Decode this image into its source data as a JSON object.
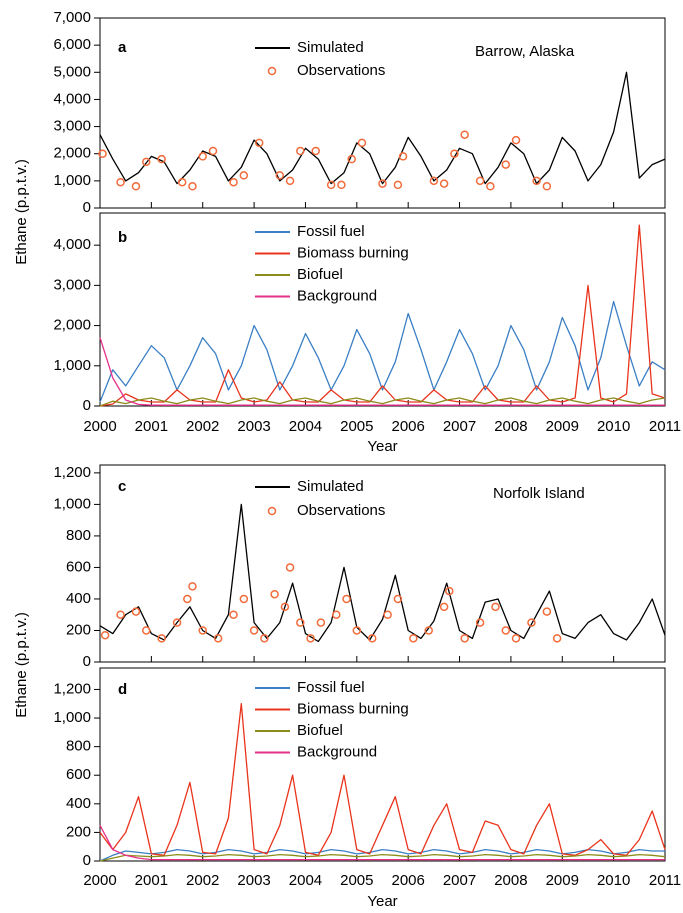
{
  "chart_data": [
    {
      "type": "line",
      "panel_label": "a",
      "annotation": "Barrow, Alaska",
      "x": [
        2000,
        2000.25,
        2000.5,
        2000.75,
        2001,
        2001.25,
        2001.5,
        2001.75,
        2002,
        2002.25,
        2002.5,
        2002.75,
        2003,
        2003.25,
        2003.5,
        2003.75,
        2004,
        2004.25,
        2004.5,
        2004.75,
        2005,
        2005.25,
        2005.5,
        2005.75,
        2006,
        2006.25,
        2006.5,
        2006.75,
        2007,
        2007.25,
        2007.5,
        2007.75,
        2008,
        2008.25,
        2008.5,
        2008.75,
        2009,
        2009.25,
        2009.5,
        2009.75,
        2010,
        2010.25,
        2010.5,
        2010.75,
        2011
      ],
      "xlim": [
        2000,
        2011
      ],
      "ylim": [
        0,
        7000
      ],
      "yticks": [
        0,
        {
          "value": 1000,
          "label": "1,000"
        },
        {
          "value": 2000,
          "label": "2,000"
        },
        {
          "value": 3000,
          "label": "3,000"
        },
        {
          "value": 4000,
          "label": "4,000"
        },
        {
          "value": 5000,
          "label": "5,000"
        },
        {
          "value": 6000,
          "label": "6,000"
        },
        {
          "value": 7000,
          "label": "7,000"
        }
      ],
      "series": [
        {
          "name": "Simulated",
          "color": "#000000",
          "values": [
            2700,
            1800,
            1000,
            1300,
            1900,
            1700,
            900,
            1400,
            2100,
            1900,
            1000,
            1500,
            2500,
            2000,
            1000,
            1400,
            2200,
            1800,
            900,
            1300,
            2400,
            2000,
            900,
            1500,
            2600,
            1900,
            1000,
            1400,
            2200,
            2000,
            900,
            1500,
            2400,
            2000,
            900,
            1400,
            2600,
            2100,
            1000,
            1600,
            2800,
            5000,
            1100,
            1600,
            1800
          ]
        },
        {
          "name": "Observations",
          "type": "scatter",
          "color": "#f26b3a",
          "x": [
            2000.05,
            2000.4,
            2000.7,
            2000.9,
            2001.2,
            2001.6,
            2001.8,
            2002.0,
            2002.2,
            2002.6,
            2002.8,
            2003.1,
            2003.5,
            2003.7,
            2003.9,
            2004.2,
            2004.5,
            2004.7,
            2004.9,
            2005.1,
            2005.5,
            2005.8,
            2005.9,
            2006.5,
            2006.7,
            2006.9,
            2007.1,
            2007.4,
            2007.6,
            2007.9,
            2008.1,
            2008.5,
            2008.7
          ],
          "values": [
            2000,
            950,
            800,
            1700,
            1800,
            950,
            800,
            1900,
            2100,
            950,
            1200,
            2400,
            1200,
            1000,
            2100,
            2100,
            850,
            850,
            1800,
            2400,
            900,
            850,
            1900,
            1000,
            900,
            2000,
            2700,
            1000,
            800,
            1600,
            2500,
            1000,
            800
          ]
        }
      ]
    },
    {
      "type": "line",
      "panel_label": "b",
      "ylabel": "Ethane (p.p.t.v.)",
      "xlabel": "Year",
      "x": [
        2000,
        2000.25,
        2000.5,
        2000.75,
        2001,
        2001.25,
        2001.5,
        2001.75,
        2002,
        2002.25,
        2002.5,
        2002.75,
        2003,
        2003.25,
        2003.5,
        2003.75,
        2004,
        2004.25,
        2004.5,
        2004.75,
        2005,
        2005.25,
        2005.5,
        2005.75,
        2006,
        2006.25,
        2006.5,
        2006.75,
        2007,
        2007.25,
        2007.5,
        2007.75,
        2008,
        2008.25,
        2008.5,
        2008.75,
        2009,
        2009.25,
        2009.5,
        2009.75,
        2010,
        2010.25,
        2010.5,
        2010.75,
        2011
      ],
      "xlim": [
        2000,
        2011
      ],
      "xticks": [
        2000,
        2001,
        2002,
        2003,
        2004,
        2005,
        2006,
        2007,
        2008,
        2009,
        2010,
        2011
      ],
      "ylim": [
        0,
        4800
      ],
      "yticks": [
        0,
        {
          "value": 1000,
          "label": "1,000"
        },
        {
          "value": 2000,
          "label": "2,000"
        },
        {
          "value": 3000,
          "label": "3,000"
        },
        {
          "value": 4000,
          "label": "4,000"
        }
      ],
      "series": [
        {
          "name": "Fossil fuel",
          "color": "#3b7fc4",
          "values": [
            100,
            900,
            500,
            1000,
            1500,
            1200,
            400,
            1000,
            1700,
            1300,
            400,
            1000,
            2000,
            1400,
            400,
            1000,
            1800,
            1200,
            400,
            1000,
            1900,
            1300,
            400,
            1100,
            2300,
            1400,
            400,
            1100,
            1900,
            1300,
            400,
            1000,
            2000,
            1400,
            400,
            1100,
            2200,
            1500,
            400,
            1200,
            2600,
            1500,
            500,
            1100,
            900
          ]
        },
        {
          "name": "Biomass burning",
          "color": "#e8341c",
          "values": [
            0,
            50,
            300,
            150,
            100,
            100,
            400,
            150,
            100,
            100,
            900,
            200,
            100,
            150,
            600,
            150,
            100,
            100,
            400,
            150,
            100,
            100,
            500,
            150,
            100,
            100,
            400,
            150,
            100,
            100,
            500,
            150,
            100,
            100,
            500,
            150,
            100,
            200,
            3000,
            200,
            100,
            300,
            4500,
            300,
            200
          ]
        },
        {
          "name": "Biofuel",
          "color": "#8c8c1a",
          "values": [
            0,
            120,
            60,
            150,
            200,
            120,
            60,
            150,
            200,
            120,
            60,
            150,
            200,
            120,
            60,
            150,
            200,
            120,
            60,
            150,
            200,
            120,
            60,
            150,
            200,
            120,
            60,
            150,
            200,
            120,
            60,
            150,
            200,
            120,
            60,
            150,
            200,
            120,
            60,
            150,
            200,
            120,
            60,
            150,
            200
          ]
        },
        {
          "name": "Background",
          "color": "#e6308a",
          "values": [
            1700,
            700,
            150,
            40,
            20,
            20,
            20,
            20,
            20,
            20,
            20,
            20,
            20,
            20,
            20,
            20,
            20,
            20,
            20,
            20,
            20,
            20,
            20,
            20,
            20,
            20,
            20,
            20,
            20,
            20,
            20,
            20,
            20,
            20,
            20,
            20,
            20,
            20,
            20,
            20,
            20,
            20,
            20,
            20,
            20
          ]
        }
      ]
    },
    {
      "type": "line",
      "panel_label": "c",
      "annotation": "Norfolk Island",
      "x": [
        2000,
        2000.25,
        2000.5,
        2000.75,
        2001,
        2001.25,
        2001.5,
        2001.75,
        2002,
        2002.25,
        2002.5,
        2002.75,
        2003,
        2003.25,
        2003.5,
        2003.75,
        2004,
        2004.25,
        2004.5,
        2004.75,
        2005,
        2005.25,
        2005.5,
        2005.75,
        2006,
        2006.25,
        2006.5,
        2006.75,
        2007,
        2007.25,
        2007.5,
        2007.75,
        2008,
        2008.25,
        2008.5,
        2008.75,
        2009,
        2009.25,
        2009.5,
        2009.75,
        2010,
        2010.25,
        2010.5,
        2010.75,
        2011
      ],
      "xlim": [
        2000,
        2011
      ],
      "ylim": [
        0,
        1250
      ],
      "yticks": [
        0,
        200,
        400,
        600,
        800,
        {
          "value": 1000,
          "label": "1,000"
        },
        {
          "value": 1200,
          "label": "1,200"
        }
      ],
      "series": [
        {
          "name": "Simulated",
          "color": "#000000",
          "values": [
            230,
            180,
            300,
            350,
            180,
            140,
            250,
            350,
            200,
            150,
            300,
            1000,
            250,
            150,
            250,
            500,
            180,
            130,
            250,
            600,
            220,
            140,
            270,
            550,
            200,
            150,
            260,
            500,
            200,
            150,
            380,
            400,
            200,
            150,
            300,
            450,
            180,
            150,
            250,
            300,
            180,
            140,
            250,
            400,
            170
          ]
        },
        {
          "name": "Observations",
          "type": "scatter",
          "color": "#f26b3a",
          "x": [
            2000.1,
            2000.4,
            2000.7,
            2000.9,
            2001.2,
            2001.5,
            2001.7,
            2001.8,
            2002.0,
            2002.3,
            2002.6,
            2002.8,
            2003.0,
            2003.2,
            2003.4,
            2003.6,
            2003.7,
            2003.9,
            2004.1,
            2004.3,
            2004.6,
            2004.8,
            2005.0,
            2005.3,
            2005.6,
            2005.8,
            2006.1,
            2006.4,
            2006.7,
            2006.8,
            2007.1,
            2007.4,
            2007.7,
            2007.9,
            2008.1,
            2008.4,
            2008.7,
            2008.9
          ],
          "values": [
            170,
            300,
            320,
            200,
            150,
            250,
            400,
            480,
            200,
            150,
            300,
            400,
            200,
            150,
            430,
            350,
            600,
            250,
            150,
            250,
            300,
            400,
            200,
            150,
            300,
            400,
            150,
            200,
            350,
            450,
            150,
            250,
            350,
            200,
            150,
            250,
            320,
            150
          ]
        }
      ]
    },
    {
      "type": "line",
      "panel_label": "d",
      "ylabel": "Ethane (p.p.t.v.)",
      "xlabel": "Year",
      "x": [
        2000,
        2000.25,
        2000.5,
        2000.75,
        2001,
        2001.25,
        2001.5,
        2001.75,
        2002,
        2002.25,
        2002.5,
        2002.75,
        2003,
        2003.25,
        2003.5,
        2003.75,
        2004,
        2004.25,
        2004.5,
        2004.75,
        2005,
        2005.25,
        2005.5,
        2005.75,
        2006,
        2006.25,
        2006.5,
        2006.75,
        2007,
        2007.25,
        2007.5,
        2007.75,
        2008,
        2008.25,
        2008.5,
        2008.75,
        2009,
        2009.25,
        2009.5,
        2009.75,
        2010,
        2010.25,
        2010.5,
        2010.75,
        2011
      ],
      "xlim": [
        2000,
        2011
      ],
      "xticks": [
        2000,
        2001,
        2002,
        2003,
        2004,
        2005,
        2006,
        2007,
        2008,
        2009,
        2010,
        2011
      ],
      "ylim": [
        0,
        1350
      ],
      "yticks": [
        0,
        200,
        400,
        600,
        800,
        {
          "value": 1000,
          "label": "1,000"
        },
        {
          "value": 1200,
          "label": "1,200"
        }
      ],
      "series": [
        {
          "name": "Fossil fuel",
          "color": "#3b7fc4",
          "values": [
            0,
            40,
            70,
            60,
            50,
            60,
            80,
            70,
            50,
            60,
            80,
            70,
            50,
            60,
            80,
            70,
            50,
            60,
            80,
            70,
            50,
            60,
            80,
            70,
            50,
            60,
            80,
            70,
            50,
            60,
            80,
            70,
            50,
            60,
            80,
            70,
            50,
            60,
            80,
            70,
            50,
            60,
            80,
            70,
            70
          ]
        },
        {
          "name": "Biomass burning",
          "color": "#e8341c",
          "values": [
            200,
            80,
            200,
            450,
            50,
            40,
            250,
            550,
            60,
            50,
            300,
            1100,
            80,
            50,
            250,
            600,
            60,
            40,
            200,
            600,
            80,
            50,
            250,
            450,
            80,
            50,
            250,
            400,
            80,
            60,
            280,
            250,
            80,
            50,
            250,
            400,
            50,
            40,
            80,
            150,
            50,
            40,
            150,
            350,
            80
          ]
        },
        {
          "name": "Biofuel",
          "color": "#8c8c1a",
          "values": [
            0,
            20,
            40,
            35,
            30,
            35,
            45,
            40,
            30,
            35,
            45,
            40,
            30,
            35,
            45,
            40,
            30,
            35,
            45,
            40,
            30,
            35,
            45,
            40,
            30,
            35,
            45,
            40,
            30,
            35,
            45,
            40,
            30,
            35,
            45,
            40,
            30,
            35,
            45,
            40,
            30,
            35,
            45,
            40,
            30
          ]
        },
        {
          "name": "Background",
          "color": "#e6308a",
          "values": [
            250,
            80,
            40,
            20,
            10,
            10,
            10,
            10,
            10,
            10,
            10,
            10,
            10,
            10,
            10,
            10,
            10,
            10,
            10,
            10,
            10,
            10,
            10,
            10,
            10,
            10,
            10,
            10,
            10,
            10,
            10,
            10,
            10,
            10,
            10,
            10,
            10,
            10,
            10,
            10,
            10,
            10,
            10,
            10,
            10
          ]
        }
      ]
    }
  ]
}
